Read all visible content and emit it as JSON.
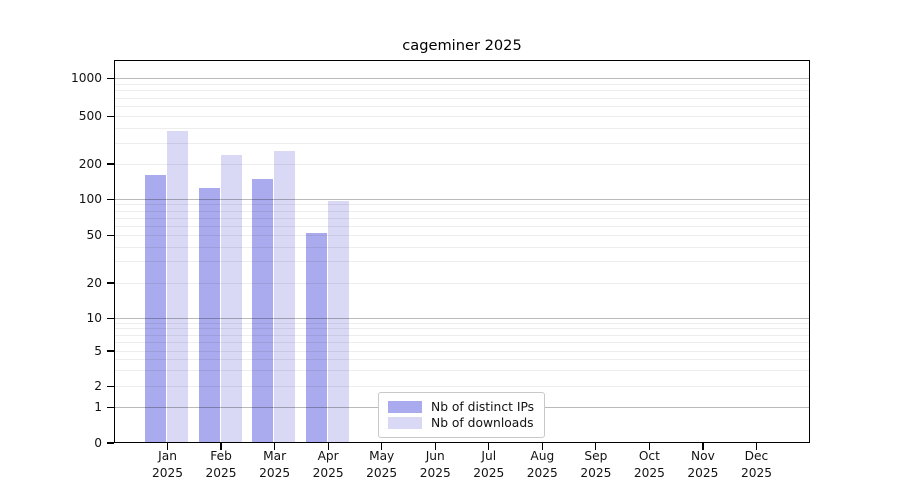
{
  "title": "cageminer 2025",
  "legend": {
    "items": [
      {
        "label": "Nb of distinct IPs",
        "color": "#aaaaee"
      },
      {
        "label": "Nb of downloads",
        "color": "#d9d9f6"
      }
    ]
  },
  "chart_data": {
    "type": "bar",
    "title": "cageminer 2025",
    "categories": [
      "Jan 2025",
      "Feb 2025",
      "Mar 2025",
      "Apr 2025",
      "May 2025",
      "Jun 2025",
      "Jul 2025",
      "Aug 2025",
      "Sep 2025",
      "Oct 2025",
      "Nov 2025",
      "Dec 2025"
    ],
    "series": [
      {
        "name": "Nb of distinct IPs",
        "color": "#aaaaee",
        "values": [
          160,
          125,
          148,
          52,
          null,
          null,
          null,
          null,
          null,
          null,
          null,
          null
        ]
      },
      {
        "name": "Nb of downloads",
        "color": "#d9d9f6",
        "values": [
          380,
          240,
          255,
          97,
          null,
          null,
          null,
          null,
          null,
          null,
          null,
          null
        ]
      }
    ],
    "xlabel": "",
    "ylabel": "",
    "y_axis": {
      "scale": "symlog",
      "ticks": [
        0,
        1,
        2,
        5,
        10,
        20,
        50,
        100,
        200,
        500,
        1000
      ],
      "range": [
        0,
        1400
      ]
    },
    "grid": "horizontal",
    "legend_position": "lower center-right"
  }
}
